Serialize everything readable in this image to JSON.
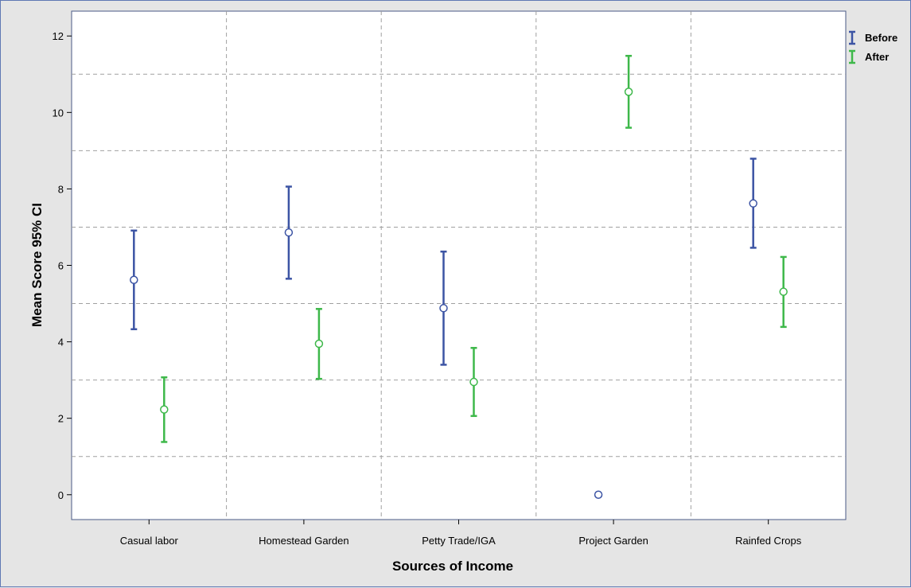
{
  "chart_data": {
    "type": "errorbar",
    "title": "",
    "xlabel": "Sources of Income",
    "ylabel": "Mean Score 95% CI",
    "categories": [
      "Casual labor",
      "Homestead Garden",
      "Petty Trade/IGA",
      "Project Garden",
      "Rainfed Crops"
    ],
    "ylim": [
      -0.65,
      12.65
    ],
    "yticks": [
      0,
      2,
      4,
      6,
      8,
      10,
      12
    ],
    "grid": true,
    "legend_position": "top-right",
    "series": [
      {
        "name": "Before",
        "color": "#3c54a4",
        "mean": [
          5.62,
          6.86,
          4.88,
          0.0,
          7.62
        ],
        "lower": [
          4.33,
          5.65,
          3.4,
          0.0,
          6.46
        ],
        "upper": [
          6.91,
          8.06,
          6.36,
          0.0,
          8.79
        ]
      },
      {
        "name": "After",
        "color": "#3eb84a",
        "mean": [
          2.23,
          3.95,
          2.95,
          10.54,
          5.31
        ],
        "lower": [
          1.38,
          3.03,
          2.06,
          9.6,
          4.39
        ],
        "upper": [
          3.07,
          4.86,
          3.84,
          11.48,
          6.22
        ]
      }
    ]
  }
}
